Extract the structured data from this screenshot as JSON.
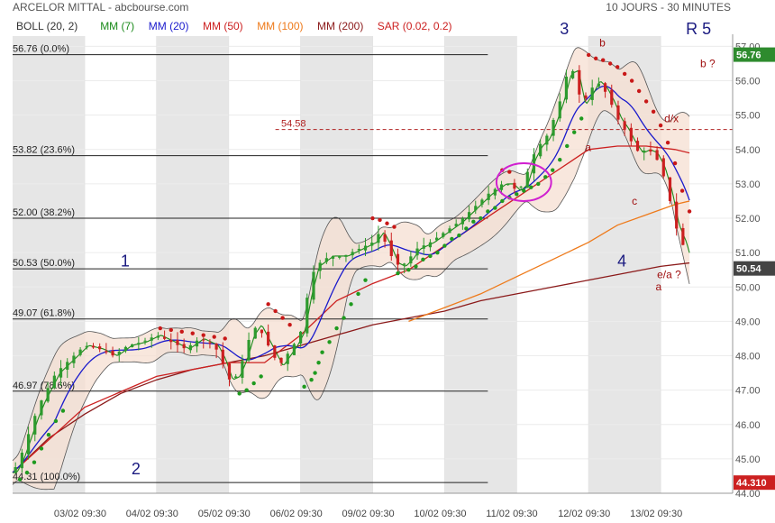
{
  "header": {
    "title": "ARCELOR MITTAL - abcbourse.com",
    "period": "10 JOURS - 30 MINUTES"
  },
  "legend": [
    {
      "label": "BOLL (20, 2)",
      "color": "#333333"
    },
    {
      "label": "MM (7)",
      "color": "#1a8a1a"
    },
    {
      "label": "MM (20)",
      "color": "#1a1acc"
    },
    {
      "label": "MM (50)",
      "color": "#cc2020"
    },
    {
      "label": "MM (100)",
      "color": "#ee7a1a"
    },
    {
      "label": "MM (200)",
      "color": "#8b1a1a"
    },
    {
      "label": "SAR (0.02, 0.2)",
      "color": "#cc2020"
    }
  ],
  "chart_data": {
    "type": "candlestick",
    "ylim": [
      44.0,
      57.3
    ],
    "xlim": [
      0,
      100
    ],
    "y_ticks": [
      "57.00",
      "56.00",
      "55.00",
      "54.00",
      "53.00",
      "52.00",
      "51.00",
      "50.00",
      "49.00",
      "48.00",
      "47.00",
      "46.00",
      "45.00",
      "44.00"
    ],
    "x_ticks": [
      {
        "label": "03/02 09:30",
        "x": 10
      },
      {
        "label": "04/02 09:30",
        "x": 20
      },
      {
        "label": "05/02 09:30",
        "x": 30
      },
      {
        "label": "06/02 09:30",
        "x": 40
      },
      {
        "label": "09/02 09:30",
        "x": 50
      },
      {
        "label": "10/02 09:30",
        "x": 60
      },
      {
        "label": "11/02 09:30",
        "x": 70
      },
      {
        "label": "12/02 09:30",
        "x": 80
      },
      {
        "label": "13/02 09:30",
        "x": 90
      }
    ],
    "shaded_days": [
      [
        0,
        10
      ],
      [
        20,
        30
      ],
      [
        40,
        50
      ],
      [
        60,
        70
      ],
      [
        80,
        90
      ]
    ],
    "fib_levels": [
      {
        "label": "56.76 (0.0%)",
        "value": 56.76
      },
      {
        "label": "53.82 (23.6%)",
        "value": 53.82
      },
      {
        "label": "52.00 (38.2%)",
        "value": 52.0
      },
      {
        "label": "50.53 (50.0%)",
        "value": 50.53
      },
      {
        "label": "49.07 (61.8%)",
        "value": 49.07
      },
      {
        "label": "46.97 (78.6%)",
        "value": 46.97
      },
      {
        "label": "44.31 (100.0%)",
        "value": 44.31
      }
    ],
    "reference_line": {
      "label": "54.58",
      "value": 54.58
    },
    "price_tags": [
      {
        "label": "56.76",
        "value": 56.76,
        "color": "#2e8b2e"
      },
      {
        "label": "50.54",
        "value": 50.54,
        "color": "#444444"
      },
      {
        "label": "44.310",
        "value": 44.31,
        "color": "#cc2020"
      }
    ],
    "wave_labels": [
      {
        "text": "1",
        "x": 15,
        "y": 50.6,
        "color": "#1a1a80",
        "size": 18
      },
      {
        "text": "2",
        "x": 16.5,
        "y": 44.55,
        "color": "#1a1a80",
        "size": 18
      },
      {
        "text": "3",
        "x": 76,
        "y": 57.35,
        "color": "#1a1a80",
        "size": 18
      },
      {
        "text": "4",
        "x": 84,
        "y": 50.6,
        "color": "#1a1a80",
        "size": 18
      },
      {
        "text": "R 5",
        "x": 93.5,
        "y": 57.35,
        "color": "#1a1a80",
        "size": 18
      },
      {
        "text": "b",
        "x": 81.5,
        "y": 57.0,
        "color": "#a01010",
        "size": 12
      },
      {
        "text": "b ?",
        "x": 95.5,
        "y": 56.4,
        "color": "#a01010",
        "size": 12
      },
      {
        "text": "d/x",
        "x": 90.5,
        "y": 54.8,
        "color": "#a01010",
        "size": 12
      },
      {
        "text": "a",
        "x": 79.5,
        "y": 53.95,
        "color": "#a01010",
        "size": 12
      },
      {
        "text": "c",
        "x": 86,
        "y": 52.4,
        "color": "#a01010",
        "size": 12
      },
      {
        "text": "e/a ?",
        "x": 89.5,
        "y": 50.25,
        "color": "#a01010",
        "size": 12
      },
      {
        "text": "a",
        "x": 89.3,
        "y": 49.9,
        "color": "#a01010",
        "size": 12
      }
    ],
    "circle": {
      "x": 71,
      "y": 53.05,
      "rx": 3.8,
      "ry": 0.55
    },
    "close_keypoints": [
      [
        0,
        44.6
      ],
      [
        1,
        45.0
      ],
      [
        2,
        45.6
      ],
      [
        3,
        46.2
      ],
      [
        4,
        46.7
      ],
      [
        5,
        47.1
      ],
      [
        6,
        47.5
      ],
      [
        8,
        47.9
      ],
      [
        10,
        48.3
      ],
      [
        12,
        48.2
      ],
      [
        14,
        48.0
      ],
      [
        16,
        48.3
      ],
      [
        18,
        48.4
      ],
      [
        20,
        48.6
      ],
      [
        22,
        48.4
      ],
      [
        24,
        48.2
      ],
      [
        26,
        48.5
      ],
      [
        28,
        48.3
      ],
      [
        29,
        47.9
      ],
      [
        30,
        47.3
      ],
      [
        31,
        47.4
      ],
      [
        32,
        47.9
      ],
      [
        33,
        48.6
      ],
      [
        34,
        48.9
      ],
      [
        35,
        48.5
      ],
      [
        36,
        48.1
      ],
      [
        37,
        47.7
      ],
      [
        38,
        48.0
      ],
      [
        39,
        48.3
      ],
      [
        40,
        48.7
      ],
      [
        41,
        49.8
      ],
      [
        42,
        50.6
      ],
      [
        44,
        50.9
      ],
      [
        46,
        50.9
      ],
      [
        48,
        51.1
      ],
      [
        50,
        51.3
      ],
      [
        51,
        51.6
      ],
      [
        52,
        51.2
      ],
      [
        53,
        50.7
      ],
      [
        54,
        50.6
      ],
      [
        55,
        50.8
      ],
      [
        56,
        51.1
      ],
      [
        58,
        51.3
      ],
      [
        60,
        51.6
      ],
      [
        62,
        51.9
      ],
      [
        64,
        52.3
      ],
      [
        66,
        52.7
      ],
      [
        68,
        53.0
      ],
      [
        69,
        53.0
      ],
      [
        70,
        52.8
      ],
      [
        71,
        53.0
      ],
      [
        72,
        53.7
      ],
      [
        73,
        54.1
      ],
      [
        74,
        54.3
      ],
      [
        75,
        54.8
      ],
      [
        76,
        55.4
      ],
      [
        77,
        56.2
      ],
      [
        78,
        56.3
      ],
      [
        79,
        55.3
      ],
      [
        80,
        55.6
      ],
      [
        81,
        56.0
      ],
      [
        82,
        55.8
      ],
      [
        83,
        55.4
      ],
      [
        84,
        54.9
      ],
      [
        85,
        54.6
      ],
      [
        86,
        54.2
      ],
      [
        87,
        53.9
      ],
      [
        88,
        54.0
      ],
      [
        89,
        53.9
      ],
      [
        90,
        53.5
      ],
      [
        91,
        52.8
      ],
      [
        92,
        51.8
      ],
      [
        93,
        51.3
      ],
      [
        94,
        50.54
      ]
    ],
    "mm50": [
      [
        0,
        44.6
      ],
      [
        10,
        46.5
      ],
      [
        20,
        47.4
      ],
      [
        30,
        47.8
      ],
      [
        35,
        47.8
      ],
      [
        40,
        48.6
      ],
      [
        45,
        49.6
      ],
      [
        50,
        50.1
      ],
      [
        55,
        50.5
      ],
      [
        60,
        51.2
      ],
      [
        65,
        51.9
      ],
      [
        70,
        52.6
      ],
      [
        75,
        53.3
      ],
      [
        80,
        54.0
      ],
      [
        84,
        54.1
      ],
      [
        88,
        54.1
      ],
      [
        92,
        54.0
      ],
      [
        94,
        53.9
      ]
    ],
    "mm100": [
      [
        55,
        49.0
      ],
      [
        60,
        49.4
      ],
      [
        65,
        49.8
      ],
      [
        70,
        50.3
      ],
      [
        75,
        50.8
      ],
      [
        80,
        51.3
      ],
      [
        84,
        51.8
      ],
      [
        88,
        52.1
      ],
      [
        92,
        52.4
      ],
      [
        94,
        52.5
      ]
    ],
    "mm200": [
      [
        0,
        44.6
      ],
      [
        5,
        45.6
      ],
      [
        10,
        46.3
      ],
      [
        15,
        46.9
      ],
      [
        20,
        47.3
      ],
      [
        25,
        47.6
      ],
      [
        30,
        47.8
      ],
      [
        35,
        48.0
      ],
      [
        40,
        48.3
      ],
      [
        45,
        48.6
      ],
      [
        50,
        48.9
      ],
      [
        55,
        49.1
      ],
      [
        60,
        49.3
      ],
      [
        65,
        49.6
      ],
      [
        70,
        49.8
      ],
      [
        75,
        50.0
      ],
      [
        80,
        50.2
      ],
      [
        85,
        50.4
      ],
      [
        90,
        50.6
      ],
      [
        94,
        50.7
      ]
    ],
    "sar_up": [
      [
        1,
        44.4
      ],
      [
        2,
        44.6
      ],
      [
        3,
        44.9
      ],
      [
        4,
        45.3
      ],
      [
        5,
        45.7
      ],
      [
        6,
        46.1
      ],
      [
        7,
        46.4
      ],
      [
        31.5,
        46.9
      ],
      [
        32.5,
        47.0
      ],
      [
        33.5,
        47.2
      ],
      [
        34.5,
        47.4
      ],
      [
        40.5,
        47.1
      ],
      [
        41.5,
        47.3
      ],
      [
        42,
        47.5
      ],
      [
        42.5,
        47.8
      ],
      [
        43,
        48.1
      ],
      [
        44,
        48.4
      ],
      [
        45,
        48.8
      ],
      [
        46,
        49.1
      ],
      [
        47,
        49.5
      ],
      [
        48,
        49.8
      ],
      [
        49,
        50.2
      ],
      [
        53.5,
        50.4
      ],
      [
        55,
        50.5
      ],
      [
        56,
        50.6
      ],
      [
        57,
        50.8
      ],
      [
        58,
        50.9
      ],
      [
        59,
        51.0
      ],
      [
        60,
        51.2
      ],
      [
        61,
        51.4
      ],
      [
        62,
        51.5
      ],
      [
        63,
        51.7
      ],
      [
        64,
        51.9
      ],
      [
        65,
        52.0
      ],
      [
        66,
        52.2
      ],
      [
        67,
        52.3
      ],
      [
        68,
        52.5
      ],
      [
        69,
        52.6
      ],
      [
        70,
        52.7
      ],
      [
        71,
        52.8
      ],
      [
        72,
        52.9
      ],
      [
        73,
        53.0
      ],
      [
        74,
        53.2
      ],
      [
        75,
        53.4
      ],
      [
        76,
        53.7
      ],
      [
        77,
        54.1
      ],
      [
        78,
        54.5
      ],
      [
        79,
        54.9
      ]
    ],
    "sar_down": [
      [
        20.5,
        48.8
      ],
      [
        22,
        48.75
      ],
      [
        23.5,
        48.7
      ],
      [
        25,
        48.65
      ],
      [
        26.5,
        48.6
      ],
      [
        28,
        48.55
      ],
      [
        29.5,
        48.5
      ],
      [
        35.5,
        49.5
      ],
      [
        36.5,
        49.3
      ],
      [
        37.5,
        49.1
      ],
      [
        38.5,
        48.9
      ],
      [
        50,
        52.0
      ],
      [
        51,
        51.95
      ],
      [
        52,
        51.85
      ],
      [
        53,
        51.75
      ],
      [
        68,
        53.4
      ],
      [
        69,
        53.35
      ],
      [
        80,
        56.75
      ],
      [
        81,
        56.65
      ],
      [
        82,
        56.6
      ],
      [
        83,
        56.5
      ],
      [
        84,
        56.4
      ],
      [
        85,
        56.2
      ],
      [
        86,
        56.0
      ],
      [
        87,
        55.7
      ],
      [
        88,
        55.4
      ],
      [
        89,
        55.1
      ],
      [
        90,
        54.7
      ],
      [
        91,
        54.2
      ],
      [
        92,
        53.6
      ],
      [
        93,
        52.8
      ],
      [
        94,
        52.2
      ]
    ]
  }
}
